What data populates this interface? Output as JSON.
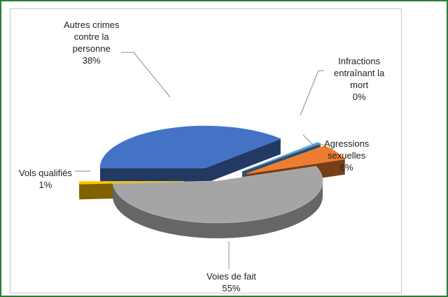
{
  "chart_data": {
    "type": "pie",
    "title": "",
    "slices": [
      {
        "label": "Autres crimes contre la personne",
        "percent": 38,
        "color": "#4472c4",
        "exploded": true
      },
      {
        "label": "Infractions entraînant la mort",
        "percent": 0,
        "color": "#5b9bd5",
        "exploded": true
      },
      {
        "label": "Agressions sexuelles",
        "percent": 6,
        "color": "#ed7d31",
        "exploded": true
      },
      {
        "label": "Voies de fait",
        "percent": 55,
        "color": "#a5a5a5",
        "exploded": false
      },
      {
        "label": "Vols qualifiés",
        "percent": 1,
        "color": "#ffc000",
        "exploded": true
      }
    ],
    "legend": "none",
    "style": "3d-exploded"
  },
  "labels": {
    "autres": {
      "l1": "Autres crimes",
      "l2": "contre la",
      "l3": "personne",
      "pct": "38%"
    },
    "infractions": {
      "l1": "Infractions",
      "l2": "entraînant la",
      "l3": "mort",
      "pct": "0%"
    },
    "agressions": {
      "l1": "Agressions",
      "l2": "sexuelles",
      "pct": "6%"
    },
    "vols": {
      "l1": "Vols qualifiés",
      "pct": "1%"
    },
    "voies": {
      "l1": "Voies de fait",
      "pct": "55%"
    }
  }
}
